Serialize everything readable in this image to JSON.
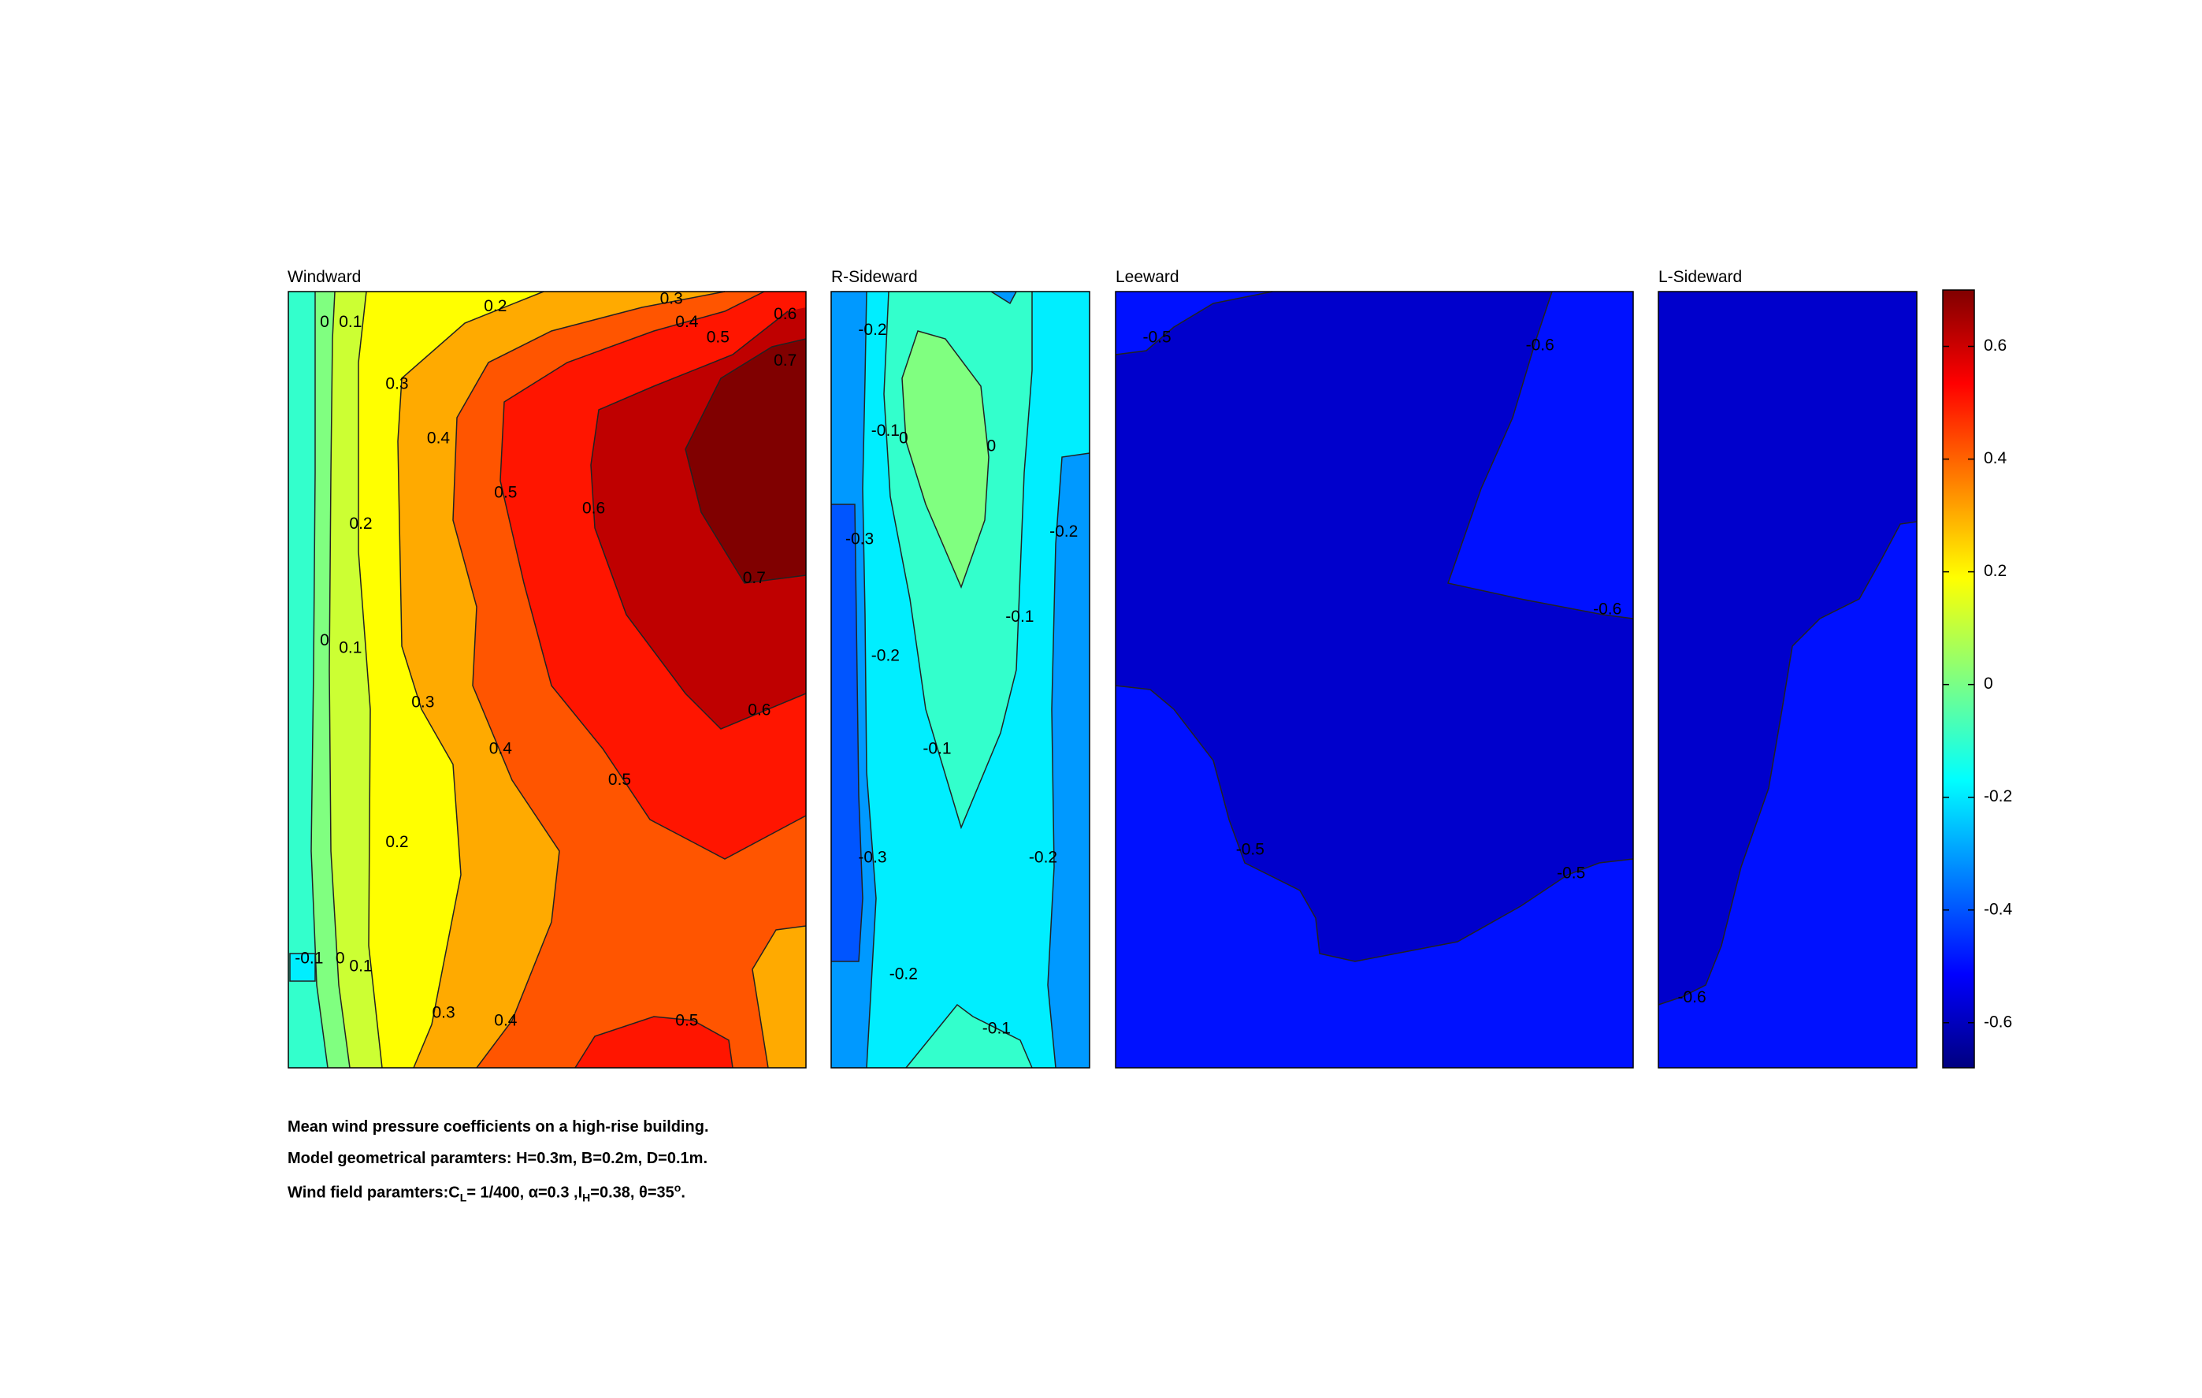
{
  "chart_data": {
    "type": "contour",
    "colormap": "jet",
    "clim": [
      -0.68,
      0.7
    ],
    "colorbar": {
      "ticks": [
        0.6,
        0.4,
        0.2,
        0,
        -0.2,
        -0.4,
        -0.6
      ],
      "tick_labels": [
        "0.6",
        "0.4",
        "0.2",
        "0",
        "-0.2",
        "-0.4",
        "-0.6"
      ]
    },
    "panels": [
      {
        "title": "Windward",
        "contour_labels": [
          {
            "text": "0",
            "u": 0.07,
            "v": 0.04
          },
          {
            "text": "0.1",
            "u": 0.12,
            "v": 0.04
          },
          {
            "text": "0.2",
            "u": 0.4,
            "v": 0.02
          },
          {
            "text": "0.3",
            "u": 0.74,
            "v": 0.01
          },
          {
            "text": "0.4",
            "u": 0.77,
            "v": 0.04
          },
          {
            "text": "0.5",
            "u": 0.83,
            "v": 0.06
          },
          {
            "text": "0.6",
            "u": 0.96,
            "v": 0.03
          },
          {
            "text": "0.7",
            "u": 0.96,
            "v": 0.09
          },
          {
            "text": "0.3",
            "u": 0.21,
            "v": 0.12
          },
          {
            "text": "0.4",
            "u": 0.29,
            "v": 0.19
          },
          {
            "text": "0.5",
            "u": 0.42,
            "v": 0.26
          },
          {
            "text": "0.6",
            "u": 0.59,
            "v": 0.28
          },
          {
            "text": "0.2",
            "u": 0.14,
            "v": 0.3
          },
          {
            "text": "0.7",
            "u": 0.9,
            "v": 0.37
          },
          {
            "text": "0",
            "u": 0.07,
            "v": 0.45
          },
          {
            "text": "0.1",
            "u": 0.12,
            "v": 0.46
          },
          {
            "text": "0.3",
            "u": 0.26,
            "v": 0.53
          },
          {
            "text": "0.6",
            "u": 0.91,
            "v": 0.54
          },
          {
            "text": "0.4",
            "u": 0.41,
            "v": 0.59
          },
          {
            "text": "0.5",
            "u": 0.64,
            "v": 0.63
          },
          {
            "text": "0.2",
            "u": 0.21,
            "v": 0.71
          },
          {
            "text": "-0.1",
            "u": 0.04,
            "v": 0.86
          },
          {
            "text": "0",
            "u": 0.1,
            "v": 0.86
          },
          {
            "text": "0.1",
            "u": 0.14,
            "v": 0.87
          },
          {
            "text": "0.3",
            "u": 0.3,
            "v": 0.93
          },
          {
            "text": "0.4",
            "u": 0.42,
            "v": 0.94
          },
          {
            "text": "0.5",
            "u": 0.77,
            "v": 0.94
          }
        ]
      },
      {
        "title": "R-Sideward",
        "contour_labels": [
          {
            "text": "-0.2",
            "u": 0.16,
            "v": 0.05
          },
          {
            "text": "-0.1",
            "u": 0.21,
            "v": 0.18
          },
          {
            "text": "0",
            "u": 0.28,
            "v": 0.19
          },
          {
            "text": "0",
            "u": 0.62,
            "v": 0.2
          },
          {
            "text": "-0.3",
            "u": 0.11,
            "v": 0.32
          },
          {
            "text": "-0.2",
            "u": 0.9,
            "v": 0.31
          },
          {
            "text": "-0.1",
            "u": 0.73,
            "v": 0.42
          },
          {
            "text": "-0.2",
            "u": 0.21,
            "v": 0.47
          },
          {
            "text": "-0.1",
            "u": 0.41,
            "v": 0.59
          },
          {
            "text": "-0.3",
            "u": 0.16,
            "v": 0.73
          },
          {
            "text": "-0.2",
            "u": 0.82,
            "v": 0.73
          },
          {
            "text": "-0.2",
            "u": 0.28,
            "v": 0.88
          },
          {
            "text": "-0.1",
            "u": 0.64,
            "v": 0.95
          }
        ]
      },
      {
        "title": "Leeward",
        "contour_labels": [
          {
            "text": "-0.5",
            "u": 0.08,
            "v": 0.06
          },
          {
            "text": "-0.6",
            "u": 0.82,
            "v": 0.07
          },
          {
            "text": "-0.6",
            "u": 0.95,
            "v": 0.41
          },
          {
            "text": "-0.5",
            "u": 0.26,
            "v": 0.72
          },
          {
            "text": "-0.5",
            "u": 0.88,
            "v": 0.75
          }
        ]
      },
      {
        "title": "L-Sideward",
        "contour_labels": [
          {
            "text": "-0.6",
            "u": 0.13,
            "v": 0.91
          }
        ]
      }
    ]
  },
  "caption": {
    "line1": "Mean wind pressure coefficients on a high-rise building.",
    "line2": "Model geometrical paramters: H=0.3m, B=0.2m, D=0.1m.",
    "line3_prefix": "Wind field paramters:C",
    "line3_cl_sub": "L",
    "line3_mid": "= 1/400, α=0.3 ,I",
    "line3_ih_sub": "H",
    "line3_suffix1": "=0.38, θ=35",
    "line3_deg_sup": "o",
    "line3_end": "."
  },
  "colors": {
    "dark_red": "#800000",
    "red_dark": "#bf0000",
    "red": "#ff1500",
    "orange_red": "#ff5500",
    "orange": "#ffaa00",
    "yellow": "#ffff00",
    "yellow_green": "#ccff33",
    "green": "#80ff80",
    "aquamarine": "#33ffcc",
    "cyan": "#00eeff",
    "azure": "#0099ff",
    "blue_mid": "#0055ff",
    "blue": "#0011ff",
    "blue_dark": "#0000cc"
  }
}
